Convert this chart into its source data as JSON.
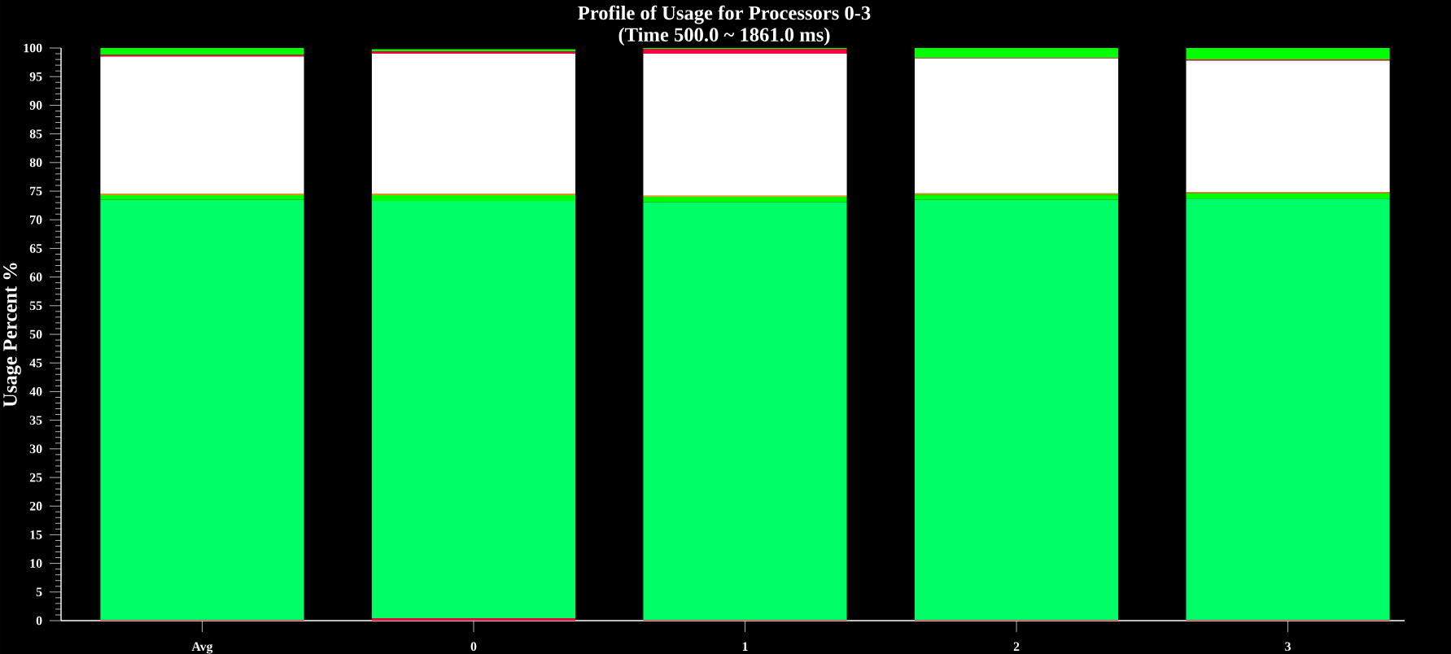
{
  "chart_data": {
    "type": "bar",
    "stacked": true,
    "title": "Profile of Usage for Processors 0-3",
    "subtitle": "(Time 500.0 ~ 1861.0 ms)",
    "ylabel": "Usage Percent %",
    "categories": [
      "Avg",
      "0",
      "1",
      "2",
      "3"
    ],
    "series": [
      {
        "color": "#ff0040",
        "values": [
          0.1,
          0.4,
          0.1,
          0.1,
          0.1
        ]
      },
      {
        "color": "#00ff66",
        "values": [
          73.4,
          72.9,
          73.0,
          73.4,
          73.6
        ]
      },
      {
        "color": "#00ff00",
        "values": [
          0.8,
          1.0,
          0.9,
          0.9,
          0.9
        ]
      },
      {
        "color": "#ff9900",
        "values": [
          0.2,
          0.2,
          0.2,
          0.2,
          0.2
        ]
      },
      {
        "color": "#ffffff",
        "values": [
          24.0,
          24.5,
          24.8,
          23.6,
          23.0
        ]
      },
      {
        "color": "#ff0040",
        "values": [
          0.3,
          0.4,
          0.8,
          0.1,
          0.2
        ]
      },
      {
        "color": "#00ff00",
        "values": [
          1.2,
          0.4,
          0.2,
          1.7,
          2.1
        ]
      }
    ],
    "ylim": [
      0,
      100
    ],
    "yticks": [
      0,
      5,
      10,
      15,
      20,
      25,
      30,
      35,
      40,
      45,
      50,
      55,
      60,
      65,
      70,
      75,
      80,
      85,
      90,
      95,
      100
    ],
    "grid": false
  }
}
